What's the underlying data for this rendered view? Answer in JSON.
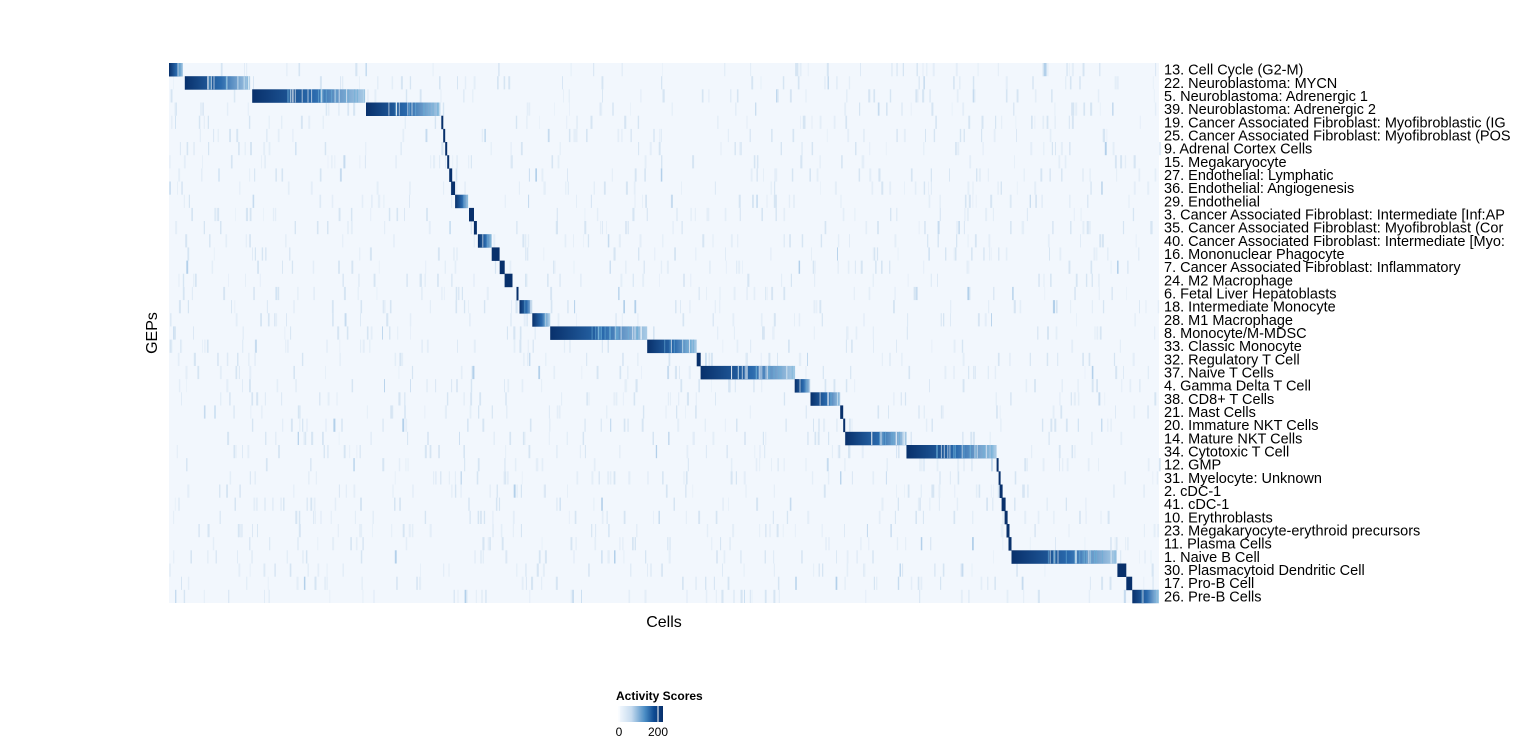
{
  "chart_data": {
    "type": "heatmap",
    "title": "",
    "xlabel": "Cells",
    "ylabel": "GEPs",
    "legend": {
      "title": "Activity Scores",
      "ticks": [
        0,
        200
      ],
      "range": [
        0,
        220
      ],
      "colors": [
        "#f7fbff",
        "#c6dbef",
        "#6baed6",
        "#2171b5",
        "#08306b"
      ],
      "placement": "bottom"
    },
    "rows": [
      {
        "label": "13. Cell Cycle (G2-M)",
        "peak_cells": [
          0.0,
          0.014
        ]
      },
      {
        "label": "22. Neuroblastoma: MYCN",
        "peak_cells": [
          0.016,
          0.082
        ]
      },
      {
        "label": "5. Neuroblastoma: Adrenergic 1",
        "peak_cells": [
          0.084,
          0.198
        ]
      },
      {
        "label": "39. Neuroblastoma: Adrenergic 2",
        "peak_cells": [
          0.199,
          0.274
        ]
      },
      {
        "label": "19. Cancer Associated Fibroblast: Myofibroblastic (IG",
        "peak_cells": [
          0.275,
          0.277
        ]
      },
      {
        "label": "25. Cancer Associated Fibroblast: Myofibroblast (POS",
        "peak_cells": [
          0.277,
          0.279
        ]
      },
      {
        "label": "9. Adrenal Cortex Cells",
        "peak_cells": [
          0.279,
          0.281
        ]
      },
      {
        "label": "15. Megakaryocyte",
        "peak_cells": [
          0.281,
          0.283
        ]
      },
      {
        "label": "27. Endothelial: Lymphatic",
        "peak_cells": [
          0.283,
          0.286
        ]
      },
      {
        "label": "36. Endothelial: Angiogenesis",
        "peak_cells": [
          0.285,
          0.289
        ]
      },
      {
        "label": "29. Endothelial",
        "peak_cells": [
          0.289,
          0.302
        ]
      },
      {
        "label": "3. Cancer Associated Fibroblast: Intermediate [Inf:AP",
        "peak_cells": [
          0.303,
          0.308
        ]
      },
      {
        "label": "35. Cancer Associated Fibroblast: Myofibroblast (Cor",
        "peak_cells": [
          0.308,
          0.311
        ]
      },
      {
        "label": "40. Cancer Associated Fibroblast: Intermediate [Myo:",
        "peak_cells": [
          0.312,
          0.326
        ]
      },
      {
        "label": "16. Mononuclear Phagocyte",
        "peak_cells": [
          0.326,
          0.334
        ]
      },
      {
        "label": "7. Cancer Associated Fibroblast: Inflammatory",
        "peak_cells": [
          0.334,
          0.339
        ]
      },
      {
        "label": "24. M2 Macrophage",
        "peak_cells": [
          0.339,
          0.347
        ]
      },
      {
        "label": "6. Fetal Liver Hepatoblasts",
        "peak_cells": [
          0.351,
          0.353
        ]
      },
      {
        "label": "18. Intermediate Monocyte",
        "peak_cells": [
          0.354,
          0.367
        ]
      },
      {
        "label": "28. M1 Macrophage",
        "peak_cells": [
          0.367,
          0.384
        ]
      },
      {
        "label": "8. Monocyte/M-MDSC",
        "peak_cells": [
          0.385,
          0.483
        ]
      },
      {
        "label": "33. Classic Monocyte",
        "peak_cells": [
          0.483,
          0.533
        ]
      },
      {
        "label": "32. Regulatory T Cell",
        "peak_cells": [
          0.533,
          0.537
        ]
      },
      {
        "label": "37. Naive T Cells",
        "peak_cells": [
          0.537,
          0.632
        ]
      },
      {
        "label": "4. Gamma Delta T Cell",
        "peak_cells": [
          0.632,
          0.648
        ]
      },
      {
        "label": "38. CD8+ T Cells",
        "peak_cells": [
          0.648,
          0.678
        ]
      },
      {
        "label": "21. Mast Cells",
        "peak_cells": [
          0.678,
          0.681
        ]
      },
      {
        "label": "20. Immature NKT Cells",
        "peak_cells": [
          0.681,
          0.683
        ]
      },
      {
        "label": "14. Mature NKT Cells",
        "peak_cells": [
          0.683,
          0.745
        ]
      },
      {
        "label": "34. Cytotoxic T Cell",
        "peak_cells": [
          0.745,
          0.836
        ]
      },
      {
        "label": "12. GMP",
        "peak_cells": [
          0.836,
          0.838
        ]
      },
      {
        "label": "31. Myelocyte: Unknown",
        "peak_cells": [
          0.838,
          0.84
        ]
      },
      {
        "label": "2. cDC-1",
        "peak_cells": [
          0.839,
          0.842
        ]
      },
      {
        "label": "41. cDC-1",
        "peak_cells": [
          0.841,
          0.845
        ]
      },
      {
        "label": "10. Erythroblasts",
        "peak_cells": [
          0.844,
          0.847
        ]
      },
      {
        "label": "23. Megakaryocyte-erythroid precursors",
        "peak_cells": [
          0.846,
          0.849
        ]
      },
      {
        "label": "11. Plasma Cells",
        "peak_cells": [
          0.848,
          0.851
        ]
      },
      {
        "label": "1. Naive B Cell",
        "peak_cells": [
          0.851,
          0.957
        ]
      },
      {
        "label": "30. Plasmacytoid Dendritic Cell",
        "peak_cells": [
          0.958,
          0.967
        ]
      },
      {
        "label": "17. Pro-B Cell",
        "peak_cells": [
          0.967,
          0.973
        ]
      },
      {
        "label": "26. Pre-B Cells",
        "peak_cells": [
          0.973,
          1.0
        ]
      }
    ]
  }
}
